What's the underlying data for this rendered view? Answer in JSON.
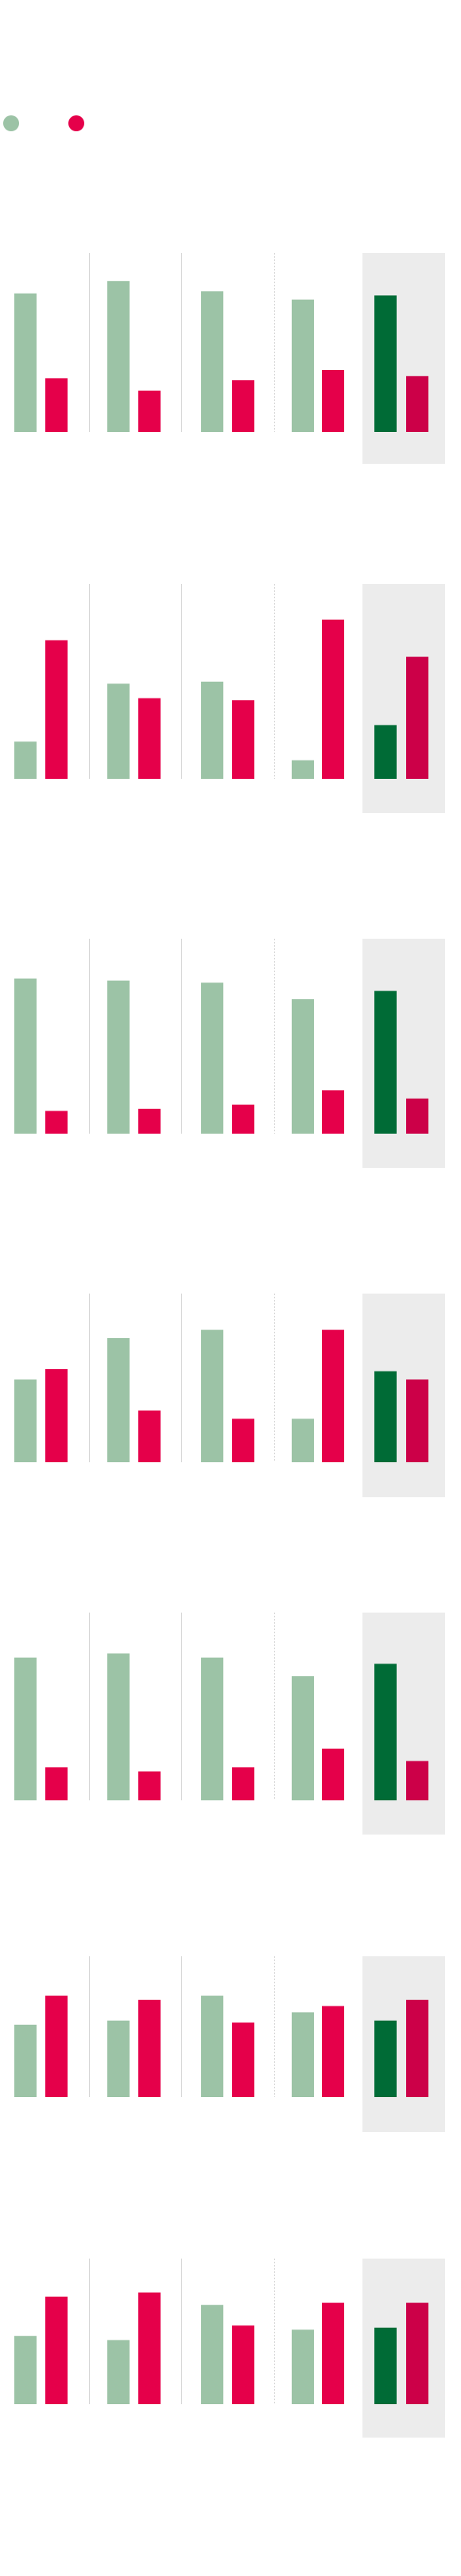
{
  "colors": {
    "series_a": "#9cc3a6",
    "series_a_highlight": "#006b36",
    "series_b": "#e5004a",
    "series_b_highlight": "#cc0048",
    "highlight_band": "#ececec",
    "separator": "#d6d6d6"
  },
  "legend": [
    {
      "name": "",
      "color": "#9cc3a6"
    },
    {
      "name": "",
      "color": "#e5004a"
    }
  ],
  "chart_data": {
    "type": "bar",
    "title": "",
    "xlabel": "",
    "ylabel": "",
    "grid": false,
    "highlighted_group_index": 4,
    "panels": [
      {
        "categories": [
          "",
          "",
          "",
          "",
          ""
        ],
        "series": [
          {
            "name": "",
            "values": [
              67,
              73,
              68,
              64,
              66
            ]
          },
          {
            "name": "",
            "values": [
              26,
              20,
              25,
              30,
              27
            ]
          }
        ],
        "ylim": [
          0,
          100
        ]
      },
      {
        "categories": [
          "",
          "",
          "",
          "",
          ""
        ],
        "series": [
          {
            "name": "",
            "values": [
              18,
              46,
              47,
              9,
              26
            ]
          },
          {
            "name": "",
            "values": [
              67,
              39,
              38,
              77,
              59
            ]
          }
        ],
        "ylim": [
          0,
          100
        ]
      },
      {
        "categories": [
          "",
          "",
          "",
          "",
          ""
        ],
        "series": [
          {
            "name": "",
            "values": [
              75,
              74,
              73,
              65,
              69
            ]
          },
          {
            "name": "",
            "values": [
              11,
              12,
              14,
              21,
              17
            ]
          }
        ],
        "ylim": [
          0,
          100
        ]
      },
      {
        "categories": [
          "",
          "",
          "",
          "",
          ""
        ],
        "series": [
          {
            "name": "",
            "values": [
              40,
              60,
              64,
              21,
              44
            ]
          },
          {
            "name": "",
            "values": [
              45,
              25,
              21,
              64,
              40
            ]
          }
        ],
        "ylim": [
          0,
          100
        ]
      },
      {
        "categories": [
          "",
          "",
          "",
          "",
          ""
        ],
        "series": [
          {
            "name": "",
            "values": [
              69,
              71,
              69,
              60,
              66
            ]
          },
          {
            "name": "",
            "values": [
              16,
              14,
              16,
              25,
              19
            ]
          }
        ],
        "ylim": [
          0,
          100
        ]
      },
      {
        "categories": [
          "",
          "",
          "",
          "",
          ""
        ],
        "series": [
          {
            "name": "",
            "values": [
              35,
              37,
              49,
              41,
              37
            ]
          },
          {
            "name": "",
            "values": [
              49,
              47,
              36,
              44,
              47
            ]
          }
        ],
        "ylim": [
          0,
          100
        ]
      },
      {
        "categories": [
          "",
          "",
          "",
          "",
          ""
        ],
        "series": [
          {
            "name": "",
            "values": [
              33,
              31,
              48,
              36,
              37
            ]
          },
          {
            "name": "",
            "values": [
              52,
              54,
              38,
              49,
              49
            ]
          }
        ],
        "ylim": [
          0,
          100
        ]
      }
    ]
  }
}
